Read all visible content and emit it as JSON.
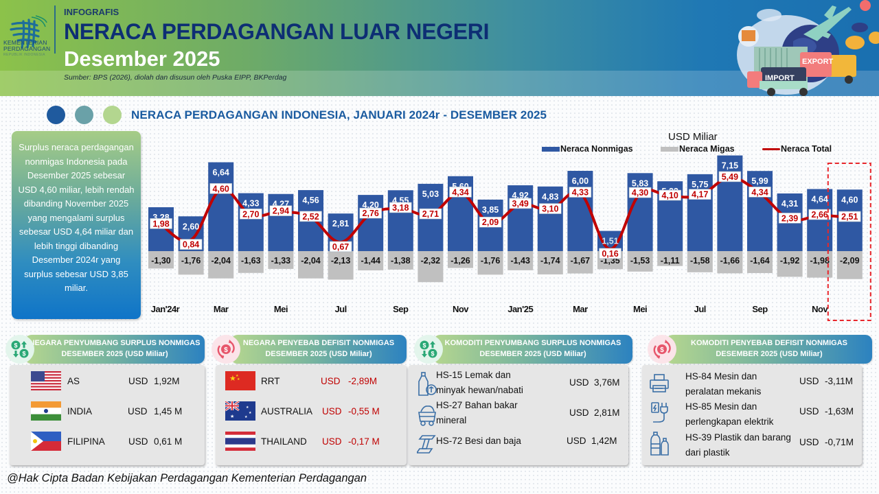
{
  "header": {
    "org_name_line1": "KEMENTERIAN",
    "org_name_line2": "PERDAGANGAN",
    "org_name_line3": "REPUBLIK INDONESIA",
    "kicker": "INFOGRAFIS",
    "title": "NERACA PERDAGANGAN LUAR NEGERI",
    "subtitle": "Desember 2025",
    "source": "Sumber: BPS (2026), diolah dan disusun oleh Puska EIPP, BKPerdag",
    "illustration_labels": {
      "export": "EXPORT",
      "import": "IMPORT"
    }
  },
  "section": {
    "title": "NERACA PERDAGANGAN INDONESIA, JANUARI 2024r - DESEMBER 2025",
    "dot_colors": [
      "#1f5a9e",
      "#6aa1a8",
      "#b3d68f"
    ]
  },
  "summary_text": "Surplus neraca perdagangan nonmigas Indonesia pada Desember 2025 sebesar USD 4,60 miliar, lebih rendah dibanding November 2025 yang mengalami surplus sebesar USD 4,64 miliar dan  lebih tinggi dibanding Desember 2024r yang surplus sebesar USD 3,85 miliar.",
  "chart_data": {
    "type": "bar",
    "title": "NERACA PERDAGANGAN INDONESIA, JANUARI 2024r - DESEMBER 2025",
    "unit_label": "USD Miliar",
    "legend_position": "top-right",
    "legend": [
      "Neraca Nonmigas",
      "Neraca Migas",
      "Neraca Total"
    ],
    "colors": {
      "nonmigas": "#2f58a3",
      "migas": "#c0c0c0",
      "total": "#c00000",
      "highlight": "#e8262b"
    },
    "categories": [
      "Jan'24r",
      "Feb'24",
      "Mar'24",
      "Apr'24",
      "Mei'24",
      "Jun'24",
      "Jul'24",
      "Agu'24",
      "Sep'24",
      "Okt'24",
      "Nov'24",
      "Des'24",
      "Jan'25",
      "Feb'25",
      "Mar'25",
      "Apr'25",
      "Mei'25",
      "Jun'25",
      "Jul'25",
      "Agu'25",
      "Sep'25",
      "Okt'25",
      "Nov'25",
      "Des'25"
    ],
    "tick_labels": [
      {
        "index": 0,
        "label": "Jan'24r"
      },
      {
        "index": 2,
        "label": "Mar"
      },
      {
        "index": 4,
        "label": "Mei"
      },
      {
        "index": 6,
        "label": "Jul"
      },
      {
        "index": 8,
        "label": "Sep"
      },
      {
        "index": 10,
        "label": "Nov"
      },
      {
        "index": 12,
        "label": "Jan'25"
      },
      {
        "index": 14,
        "label": "Mar"
      },
      {
        "index": 16,
        "label": "Mei"
      },
      {
        "index": 18,
        "label": "Jul"
      },
      {
        "index": 20,
        "label": "Sep"
      },
      {
        "index": 22,
        "label": "Nov"
      }
    ],
    "series": [
      {
        "name": "Neraca Nonmigas",
        "type": "bar",
        "values": [
          3.28,
          2.6,
          6.64,
          4.33,
          4.27,
          4.56,
          2.81,
          4.2,
          4.55,
          5.03,
          5.6,
          3.85,
          4.92,
          4.83,
          6.0,
          1.51,
          5.83,
          5.22,
          5.75,
          7.15,
          5.99,
          4.31,
          4.64,
          4.6
        ],
        "labels": [
          "3,28",
          "2,60",
          "6,64",
          "4,33",
          "4,27",
          "4,56",
          "2,81",
          "4,20",
          "4,55",
          "5,03",
          "5,60",
          "3,85",
          "4,92",
          "4,83",
          "6,00",
          "1,51",
          "5,83",
          "5,22",
          "5,75",
          "7,15",
          "5,99",
          "4,31",
          "4,64",
          "4,60"
        ]
      },
      {
        "name": "Neraca Migas",
        "type": "bar",
        "values": [
          -1.3,
          -1.76,
          -2.04,
          -1.63,
          -1.33,
          -2.04,
          -2.13,
          -1.44,
          -1.38,
          -2.32,
          -1.26,
          -1.76,
          -1.43,
          -1.74,
          -1.67,
          -1.35,
          -1.53,
          -1.11,
          -1.58,
          -1.66,
          -1.64,
          -1.92,
          -1.98,
          -2.09
        ],
        "labels": [
          "-1,30",
          "-1,76",
          "-2,04",
          "-1,63",
          "-1,33",
          "-2,04",
          "-2,13",
          "-1,44",
          "-1,38",
          "-2,32",
          "-1,26",
          "-1,76",
          "-1,43",
          "-1,74",
          "-1,67",
          "-1,35",
          "-1,53",
          "-1,11",
          "-1,58",
          "-1,66",
          "-1,64",
          "-1,92",
          "-1,98",
          "-2,09"
        ]
      },
      {
        "name": "Neraca Total",
        "type": "line",
        "values": [
          1.98,
          0.84,
          4.6,
          2.7,
          2.94,
          2.52,
          0.67,
          2.76,
          3.18,
          2.71,
          4.34,
          2.09,
          3.49,
          3.1,
          4.33,
          0.16,
          4.3,
          4.1,
          4.17,
          5.49,
          4.34,
          2.39,
          2.66,
          2.51
        ],
        "labels": [
          "1,98",
          "0,84",
          "4,60",
          "2,70",
          "2,94",
          "2,52",
          "0,67",
          "2,76",
          "3,18",
          "2,71",
          "4,34",
          "2,09",
          "3,49",
          "3,10",
          "4,33",
          "0,16",
          "4,30",
          "4,10",
          "4,17",
          "5,49",
          "4,34",
          "2,39",
          "2,66",
          "2,51"
        ]
      }
    ],
    "highlighted_category": "Des'25",
    "ylim": [
      -2.5,
      7.5
    ],
    "grid": false,
    "xlabel": "",
    "ylabel": ""
  },
  "panels": {
    "surplus_countries": {
      "title_line1": "NEGARA PENYUMBANG SURPLUS NONMIGAS",
      "title_line2": "DESEMBER 2025 (USD Miliar)",
      "icon": "money-up-down-icon",
      "rows": [
        {
          "flag": "us-flag",
          "name": "AS",
          "currency": "USD",
          "value": "1,92M"
        },
        {
          "flag": "india-flag",
          "name": "INDIA",
          "currency": "USD",
          "value": "1,45 M"
        },
        {
          "flag": "philippines-flag",
          "name": "FILIPINA",
          "currency": "USD",
          "value": "0,61 M"
        }
      ]
    },
    "deficit_countries": {
      "title_line1": "NEGARA PENYEBAB DEFISIT NONMIGAS",
      "title_line2": "DESEMBER 2025 (USD Miliar)",
      "icon": "money-cycle-icon",
      "rows": [
        {
          "flag": "china-flag",
          "name": "RRT",
          "currency": "USD",
          "value": "-2,89M"
        },
        {
          "flag": "australia-flag",
          "name": "AUSTRALIA",
          "currency": "USD",
          "value": "-0,55 M"
        },
        {
          "flag": "thailand-flag",
          "name": "THAILAND",
          "currency": "USD",
          "value": "-0,17 M"
        }
      ]
    },
    "surplus_commodities": {
      "title_line1": "KOMODITI PENYUMBANG SURPLUS NONMIGAS",
      "title_line2": "DESEMBER 2025 (USD Miliar)",
      "icon": "money-up-down-icon",
      "rows": [
        {
          "icon": "oil-bottle-icon",
          "line1": "HS-15 Lemak dan",
          "line2": "minyak hewan/nabati",
          "currency": "USD",
          "value": "3,76M"
        },
        {
          "icon": "coal-cart-icon",
          "line1": "HS-27 Bahan bakar",
          "line2": "mineral",
          "currency": "USD",
          "value": "2,81M"
        },
        {
          "icon": "steel-beam-icon",
          "line1": "HS-72 Besi dan baja",
          "line2": "",
          "currency": "USD",
          "value": "1,42M"
        }
      ]
    },
    "deficit_commodities": {
      "title_line1": "KOMODITI PENYEBAB DEFISIT NONMIGAS",
      "title_line2": "DESEMBER 2025 (USD Miliar)",
      "icon": "money-cycle-icon",
      "rows": [
        {
          "icon": "printer-machine-icon",
          "line1": "HS-84 Mesin dan",
          "line2": "peralatan  mekanis",
          "currency": "USD",
          "value": "-3,11M"
        },
        {
          "icon": "electric-plug-icon",
          "line1": "HS-85 Mesin dan",
          "line2": "perlengkapan elektrik",
          "currency": "USD",
          "value": "-1,63M"
        },
        {
          "icon": "plastic-bottles-icon",
          "line1": "HS-39 Plastik dan barang",
          "line2": "dari plastik",
          "currency": "USD",
          "value": "-0,71M"
        }
      ]
    }
  },
  "footer": {
    "copyright": "@Hak Cipta Badan Kebijakan Perdagangan Kementerian Perdagangan"
  }
}
